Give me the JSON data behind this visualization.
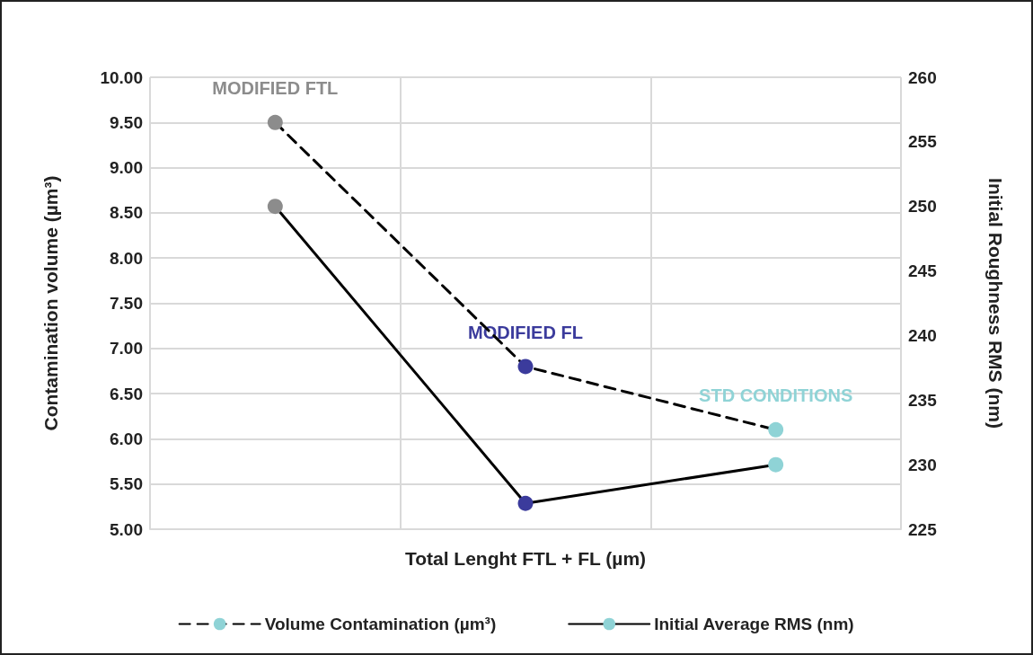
{
  "chart_data": {
    "type": "line",
    "xlabel": "Total Lenght FTL + FL (µm)",
    "ylabel": "Contamination volume (µm³)",
    "y2label": "Initial Roughness RMS (nm)",
    "categories": [
      null,
      null,
      null
    ],
    "ylim": [
      5,
      10
    ],
    "yticks": [
      {
        "value": 5,
        "label": "5.00"
      },
      {
        "value": 5.5,
        "label": "5.50"
      },
      {
        "value": 6,
        "label": "6.00"
      },
      {
        "value": 6.5,
        "label": "6.50"
      },
      {
        "value": 7,
        "label": "7.00"
      },
      {
        "value": 7.5,
        "label": "7.50"
      },
      {
        "value": 8,
        "label": "8.00"
      },
      {
        "value": 8.5,
        "label": "8.50"
      },
      {
        "value": 9,
        "label": "9.00"
      },
      {
        "value": 9.5,
        "label": "9.50"
      },
      {
        "value": 10,
        "label": "10.00"
      }
    ],
    "y2lim": [
      225,
      260
    ],
    "y2ticks": [
      225,
      230,
      235,
      240,
      245,
      250,
      255,
      260
    ],
    "grid": true,
    "legend": "bottom",
    "marker": "circle",
    "series": [
      {
        "name": "Volume Contamination (µm³)",
        "color": "#000000",
        "colors": [
          "#8c8c8c",
          "#3b3b9c",
          "#8fd3d6"
        ],
        "line_style": "dashed",
        "values": [
          9.5,
          6.8,
          6.1
        ]
      },
      {
        "name": "Initial Average RMS (nm)",
        "color": "#000000",
        "colors": [
          "#8c8c8c",
          "#3b3b9c",
          "#8fd3d6"
        ],
        "line_style": "solid",
        "axis": "y2",
        "values": [
          250,
          227,
          230
        ]
      }
    ],
    "annotations": [
      {
        "text": "MODIFIED FTL",
        "y": 9.5
      },
      {
        "text": "MODIFIED FL",
        "y": 6.8
      },
      {
        "text": "STD CONDITIONS",
        "y": 6.1
      }
    ]
  }
}
